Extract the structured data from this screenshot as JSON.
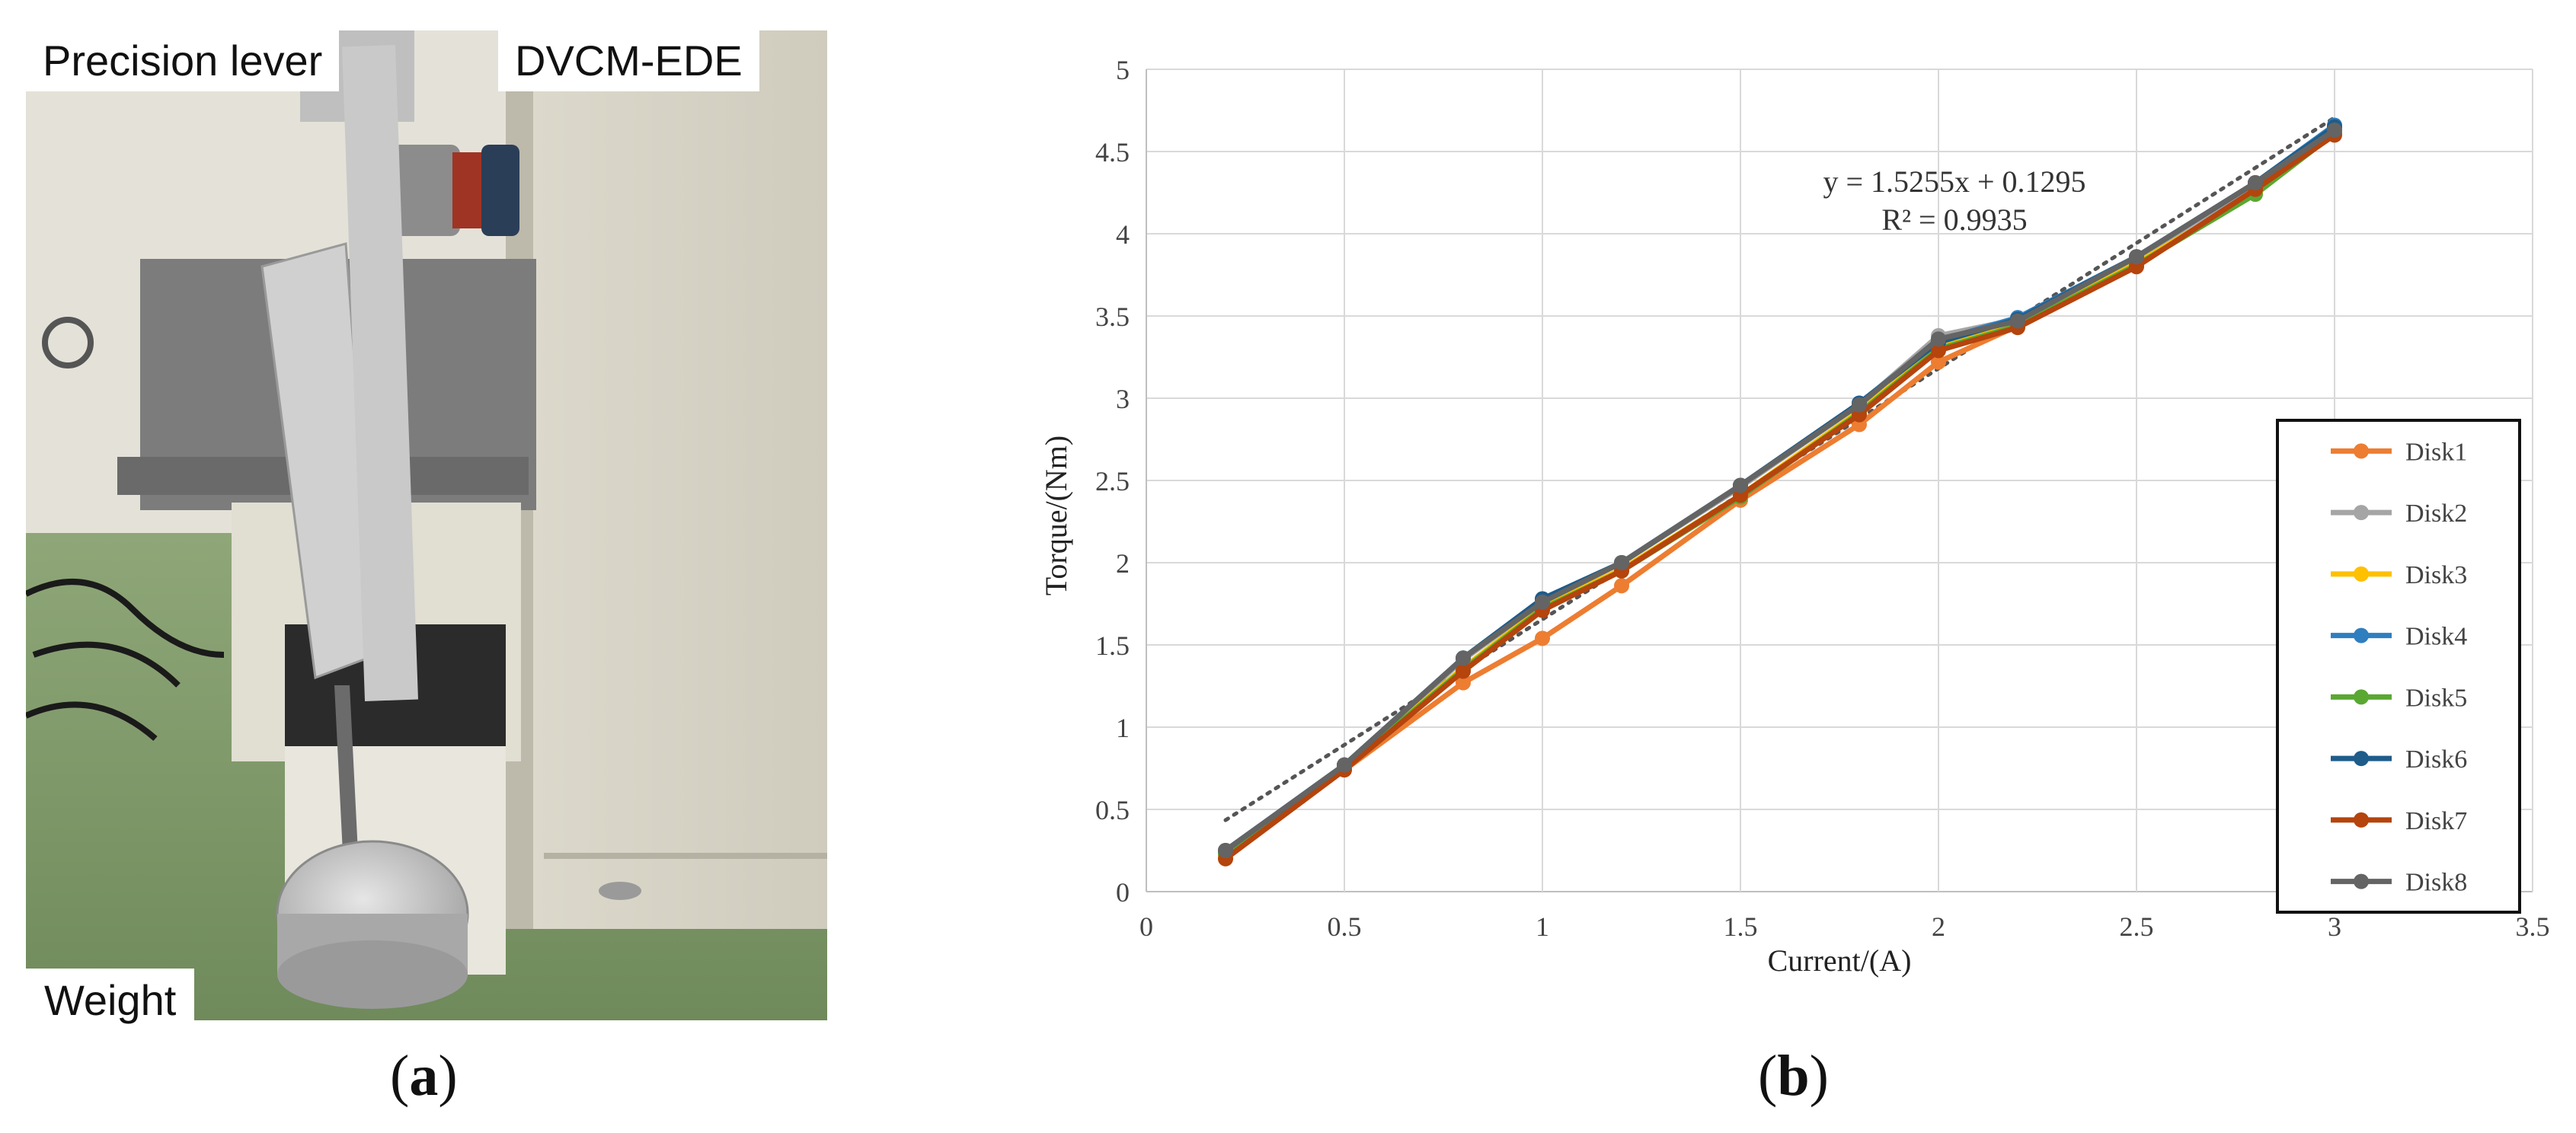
{
  "figure": {
    "photo_labels": {
      "lever": "Precision lever",
      "actuator": "DVCM-EDE",
      "weight": "Weight"
    },
    "captions": {
      "a_open": "(",
      "a_letter": "a",
      "a_close": ")",
      "b_open": "(",
      "b_letter": "b",
      "b_close": ")"
    }
  },
  "colors": {
    "Disk1": "#ed7d31",
    "Disk2": "#a5a5a5",
    "Disk3": "#ffc000",
    "Disk4": "#2f7ebf",
    "Disk5": "#5aa832",
    "Disk6": "#1f5c8a",
    "Disk7": "#b5440d",
    "Disk8": "#646464",
    "trend": "#555555",
    "grid": "#d9d9d9"
  },
  "chart_data": {
    "type": "line",
    "title": "",
    "xlabel": "Current/(A)",
    "ylabel": "Torque/(Nm)",
    "xlim": [
      0,
      3.5
    ],
    "ylim": [
      0,
      5
    ],
    "xticks": [
      "0",
      "0.5",
      "1",
      "1.5",
      "2",
      "2.5",
      "3",
      "3.5"
    ],
    "yticks": [
      "0",
      "0.5",
      "1",
      "1.5",
      "2",
      "2.5",
      "3",
      "3.5",
      "4",
      "4.5",
      "5"
    ],
    "grid": true,
    "legend_position": "right",
    "x": [
      0.2,
      0.5,
      0.8,
      1.0,
      1.2,
      1.5,
      1.8,
      2.0,
      2.2,
      2.5,
      2.8,
      3.0
    ],
    "series": [
      {
        "name": "Disk1",
        "values": [
          0.2,
          0.74,
          1.27,
          1.54,
          1.86,
          2.38,
          2.84,
          3.22,
          3.44,
          3.81,
          4.25,
          4.61
        ]
      },
      {
        "name": "Disk2",
        "values": [
          0.24,
          0.76,
          1.41,
          1.76,
          2.0,
          2.46,
          2.96,
          3.38,
          3.48,
          3.85,
          4.3,
          4.64
        ]
      },
      {
        "name": "Disk3",
        "values": [
          0.22,
          0.75,
          1.36,
          1.73,
          1.96,
          2.41,
          2.92,
          3.31,
          3.45,
          3.82,
          4.25,
          4.62
        ]
      },
      {
        "name": "Disk4",
        "values": [
          0.25,
          0.77,
          1.42,
          1.78,
          2.0,
          2.47,
          2.97,
          3.35,
          3.49,
          3.86,
          4.31,
          4.66
        ]
      },
      {
        "name": "Disk5",
        "values": [
          0.23,
          0.75,
          1.35,
          1.72,
          1.95,
          2.4,
          2.91,
          3.3,
          3.44,
          3.81,
          4.24,
          4.61
        ]
      },
      {
        "name": "Disk6",
        "values": [
          0.25,
          0.77,
          1.42,
          1.78,
          2.0,
          2.47,
          2.97,
          3.34,
          3.48,
          3.86,
          4.31,
          4.65
        ]
      },
      {
        "name": "Disk7",
        "values": [
          0.2,
          0.74,
          1.34,
          1.71,
          1.95,
          2.41,
          2.9,
          3.29,
          3.43,
          3.8,
          4.27,
          4.6
        ]
      },
      {
        "name": "Disk8",
        "values": [
          0.25,
          0.77,
          1.42,
          1.76,
          2.0,
          2.47,
          2.96,
          3.36,
          3.47,
          3.86,
          4.31,
          4.63
        ]
      }
    ],
    "trendline": {
      "slope": 1.5255,
      "intercept": 0.1295,
      "x_range": [
        0.2,
        3.0
      ]
    },
    "annotations": {
      "equation": "y = 1.5255x + 0.1295",
      "r_squared": "R² = 0.9935"
    }
  }
}
